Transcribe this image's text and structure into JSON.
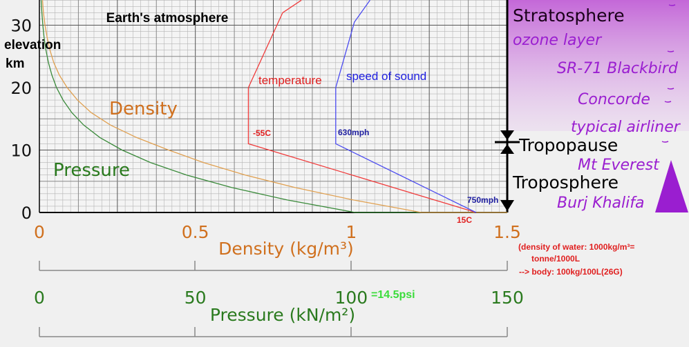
{
  "chart_data": {
    "type": "line",
    "title": "Earth's atmosphere",
    "ylabel_line1": "elevation",
    "ylabel_line2": "km",
    "y_axis": {
      "range": [
        0,
        34
      ],
      "ticks": [
        "0",
        "10",
        "20",
        "30"
      ]
    },
    "density_axis": {
      "label": "Density (kg/m³)",
      "range": [
        0,
        1.5
      ],
      "ticks": [
        "0",
        "0.5",
        "1",
        "1.5"
      ],
      "color": "#d0701e"
    },
    "pressure_axis": {
      "label": "Pressure (kN/m²)",
      "range": [
        0,
        150
      ],
      "ticks": [
        "0",
        "50",
        "100",
        "150"
      ],
      "color": "#2a7a1e",
      "note": "=14.5psi"
    },
    "series": [
      {
        "name": "Pressure",
        "color": "#3a8a3a",
        "points": [
          [
            150,
            0
          ],
          [
            101.3,
            0
          ],
          [
            79.5,
            2
          ],
          [
            61.6,
            4
          ],
          [
            47.2,
            6
          ],
          [
            35.6,
            8
          ],
          [
            26.5,
            10
          ],
          [
            19.4,
            12
          ],
          [
            14.2,
            14
          ],
          [
            10.4,
            16
          ],
          [
            7.6,
            18
          ],
          [
            5.5,
            20
          ],
          [
            4.0,
            22
          ],
          [
            2.9,
            24
          ],
          [
            2.1,
            26
          ],
          [
            1.5,
            28
          ],
          [
            1.1,
            30
          ],
          [
            0.8,
            32
          ],
          [
            0.55,
            34
          ]
        ]
      },
      {
        "name": "Density",
        "color": "#e0a050",
        "points": [
          [
            1.5,
            0
          ],
          [
            1.225,
            0
          ],
          [
            1.007,
            2
          ],
          [
            0.819,
            4
          ],
          [
            0.66,
            6
          ],
          [
            0.526,
            8
          ],
          [
            0.414,
            10
          ],
          [
            0.312,
            12
          ],
          [
            0.228,
            14
          ],
          [
            0.166,
            16
          ],
          [
            0.122,
            18
          ],
          [
            0.089,
            20
          ],
          [
            0.064,
            22
          ],
          [
            0.046,
            24
          ],
          [
            0.034,
            26
          ],
          [
            0.025,
            28
          ],
          [
            0.018,
            30
          ],
          [
            0.013,
            32
          ],
          [
            0.01,
            34
          ]
        ]
      },
      {
        "name": "temperature",
        "color": "#f03a3a",
        "points": [
          [
            1.4,
            0
          ],
          [
            0.67,
            11
          ],
          [
            0.67,
            20
          ],
          [
            0.78,
            32
          ],
          [
            0.84,
            34
          ]
        ],
        "labels": [
          {
            "text": "15C",
            "at": [
              1.35,
              -1.8
            ]
          },
          {
            "text": "-55C",
            "at": [
              0.68,
              12.2
            ]
          }
        ]
      },
      {
        "name": "speed of sound",
        "color": "#4a4af0",
        "points": [
          [
            1.4,
            0
          ],
          [
            0.95,
            11
          ],
          [
            0.95,
            20
          ],
          [
            1.01,
            30.5
          ],
          [
            1.06,
            34
          ]
        ],
        "labels": [
          {
            "text": "750mph",
            "at": [
              1.37,
              1.2
            ]
          },
          {
            "text": "630mph",
            "at": [
              0.955,
              12.2
            ]
          }
        ]
      }
    ],
    "legend": "inline labels",
    "grid": true
  },
  "annotations": {
    "layers": [
      "Stratosphere",
      "Tropopause",
      "Troposphere"
    ],
    "features": [
      "ozone layer",
      "SR-71 Blackbird",
      "Concorde",
      "typical airliner",
      "Mt Everest",
      "Burj Khalifa"
    ],
    "water_note": [
      "(density of water: 1000kg/m³=",
      "tonne/1000L",
      "--> body: 100kg/100L(26G)"
    ]
  }
}
